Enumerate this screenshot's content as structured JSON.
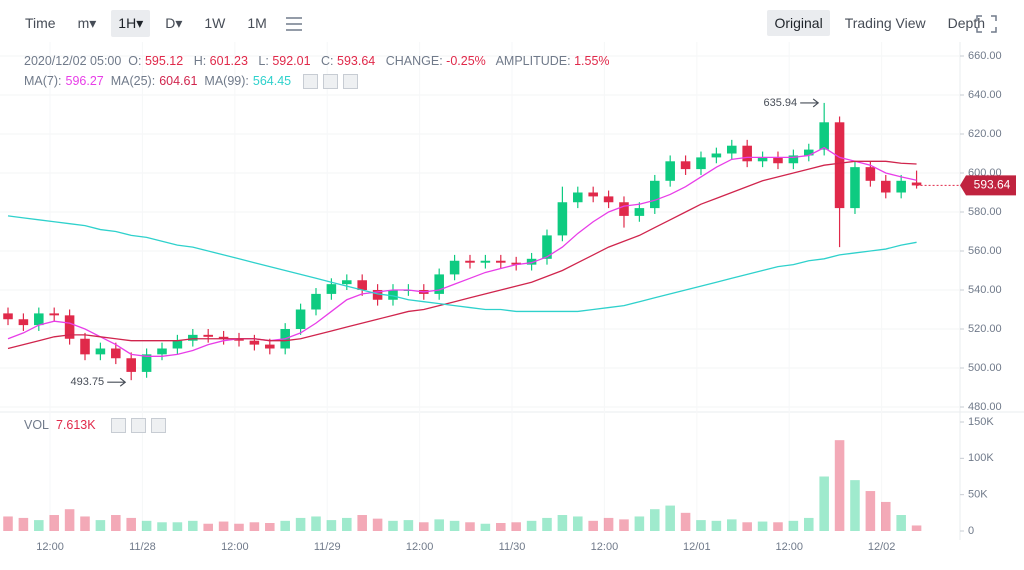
{
  "toolbar": {
    "left": [
      "Time",
      "m▾",
      "1H▾",
      "D▾",
      "1W",
      "1M"
    ],
    "selected_left": 2,
    "right": [
      "Original",
      "Trading View",
      "Depth"
    ],
    "selected_right": 0
  },
  "info": {
    "time": "2020/12/02 05:00",
    "open_label": "O:",
    "high_label": "H:",
    "low_label": "L:",
    "close_label": "C:",
    "change_label": "CHANGE:",
    "change": "-0.25%",
    "amplitude_label": "AMPLITUDE:",
    "amplitude": "1.55%"
  },
  "volume_title": "VOL",
  "current_volume_label": "7.613K",
  "chart_data": {
    "type": "candlestick",
    "up_color": "#0ecb81",
    "down_color": "#e0294a",
    "open": [
      528,
      525,
      522,
      528,
      527,
      515,
      507,
      510,
      505,
      498,
      507,
      510,
      514,
      517,
      516,
      515,
      514,
      512,
      510,
      520,
      530,
      538,
      543,
      545,
      540,
      535,
      540,
      540,
      538,
      548,
      555,
      554,
      555,
      554,
      553,
      556,
      568,
      585,
      590,
      588,
      585,
      578,
      582,
      596,
      606,
      602,
      608,
      610,
      614,
      606,
      608,
      605,
      609,
      612,
      626,
      582,
      603,
      596,
      590,
      595.12
    ],
    "high": [
      531,
      528,
      531,
      531,
      530,
      518,
      513,
      513,
      508,
      510,
      513,
      517,
      520,
      520,
      519,
      518,
      517,
      515,
      523,
      533,
      541,
      546,
      548,
      548,
      543,
      543,
      543,
      543,
      551,
      558,
      558,
      558,
      558,
      557,
      559,
      571,
      593,
      593,
      593,
      591,
      588,
      585,
      599,
      609,
      609,
      611,
      613,
      617,
      617,
      611,
      611,
      612,
      615,
      635.94,
      629,
      606,
      606,
      599,
      599,
      601.23
    ],
    "low": [
      522,
      519,
      519,
      524,
      512,
      504,
      504,
      502,
      493.75,
      495,
      504,
      507,
      511,
      513,
      512,
      511,
      509,
      507,
      507,
      517,
      527,
      535,
      540,
      537,
      532,
      532,
      537,
      535,
      535,
      545,
      551,
      551,
      551,
      550,
      550,
      553,
      565,
      582,
      585,
      582,
      572,
      575,
      579,
      593,
      599,
      599,
      605,
      607,
      603,
      603,
      602,
      602,
      606,
      609,
      562,
      579,
      593,
      587,
      587,
      592.01
    ],
    "close": [
      525,
      522,
      528,
      527,
      515,
      507,
      510,
      505,
      498,
      507,
      510,
      514,
      517,
      516,
      515,
      514,
      512,
      510,
      520,
      530,
      538,
      543,
      545,
      540,
      535,
      540,
      540,
      538,
      548,
      555,
      554,
      555,
      554,
      553,
      556,
      568,
      585,
      590,
      588,
      585,
      578,
      582,
      596,
      606,
      602,
      608,
      610,
      614,
      606,
      608,
      605,
      609,
      612,
      626,
      582,
      603,
      596,
      590,
      596,
      593.64
    ],
    "volume": [
      20,
      18,
      15,
      22,
      30,
      20,
      15,
      22,
      18,
      14,
      12,
      12,
      14,
      10,
      13,
      10,
      12,
      11,
      14,
      18,
      20,
      15,
      18,
      22,
      17,
      14,
      15,
      12,
      16,
      14,
      12,
      10,
      11,
      12,
      14,
      18,
      22,
      20,
      14,
      18,
      16,
      20,
      30,
      35,
      25,
      15,
      14,
      16,
      12,
      13,
      12,
      14,
      18,
      75,
      125,
      70,
      55,
      40,
      22,
      7.613
    ],
    "series": [
      {
        "name": "MA(7):",
        "color": "#e83ee8",
        "values": [
          515,
          518,
          522,
          524,
          523,
          520,
          516,
          512,
          507,
          506,
          506,
          507,
          509,
          512,
          514,
          515,
          515,
          514,
          515,
          518,
          523,
          529,
          535,
          538,
          539,
          540,
          540,
          539,
          540,
          543,
          546,
          549,
          551,
          553,
          554,
          557,
          562,
          569,
          575,
          580,
          583,
          584,
          586,
          589,
          593,
          598,
          603,
          607,
          608,
          608,
          608,
          608,
          609,
          613,
          608,
          606,
          604,
          600,
          598,
          596.27
        ]
      },
      {
        "name": "MA(25):",
        "color": "#d0254d",
        "values": [
          510,
          512,
          514,
          516,
          517,
          517,
          516,
          515,
          514,
          514,
          514,
          514,
          515,
          515,
          515,
          515,
          515,
          514,
          514,
          515,
          517,
          519,
          521,
          523,
          525,
          527,
          529,
          530,
          532,
          534,
          536,
          538,
          540,
          542,
          544,
          547,
          550,
          554,
          558,
          562,
          565,
          568,
          572,
          576,
          580,
          584,
          587,
          590,
          593,
          596,
          598,
          600,
          602,
          604,
          605,
          606,
          606,
          606,
          605,
          604.61
        ]
      },
      {
        "name": "MA(99):",
        "color": "#2fd1cc",
        "values": [
          578,
          577,
          576,
          575,
          574,
          573,
          571,
          570,
          568,
          567,
          565,
          563,
          562,
          560,
          558,
          556,
          554,
          552,
          550,
          548,
          546,
          544,
          542,
          540,
          538,
          537,
          535,
          534,
          533,
          532,
          531,
          530,
          530,
          529,
          529,
          529,
          529,
          529,
          530,
          531,
          532,
          534,
          536,
          538,
          540,
          542,
          544,
          546,
          548,
          550,
          552,
          553,
          555,
          556,
          558,
          559,
          560,
          561,
          563,
          564.45
        ]
      }
    ],
    "xlim": [
      -0.52,
      61.82
    ],
    "xticks": [
      {
        "value": 2.73,
        "label": "12:00"
      },
      {
        "value": 8.73,
        "label": "11/28"
      },
      {
        "value": 14.73,
        "label": "12:00"
      },
      {
        "value": 20.73,
        "label": "11/29"
      },
      {
        "value": 26.73,
        "label": "12:00"
      },
      {
        "value": 32.73,
        "label": "11/30"
      },
      {
        "value": 38.73,
        "label": "12:00"
      },
      {
        "value": 44.73,
        "label": "12/01"
      },
      {
        "value": 50.73,
        "label": "12:00"
      },
      {
        "value": 56.73,
        "label": "12/02"
      }
    ],
    "ylim": [
      480,
      660
    ],
    "yticks": [
      {
        "value": 480,
        "label": "480.00"
      },
      {
        "value": 500,
        "label": "500.00"
      },
      {
        "value": 520,
        "label": "520.00"
      },
      {
        "value": 540,
        "label": "540.00"
      },
      {
        "value": 560,
        "label": "560.00"
      },
      {
        "value": 580,
        "label": "580.00"
      },
      {
        "value": 600,
        "label": "600.00"
      },
      {
        "value": 620,
        "label": "620.00"
      },
      {
        "value": 640,
        "label": "640.00"
      },
      {
        "value": 660,
        "label": "660.00"
      }
    ],
    "volume_ylim": [
      0,
      150
    ],
    "volume_yticks": [
      0,
      {
        "value": 50,
        "label": "50K"
      },
      {
        "value": 100,
        "label": "100K"
      },
      {
        "value": 150,
        "label": "150K"
      }
    ],
    "grid": true
  }
}
